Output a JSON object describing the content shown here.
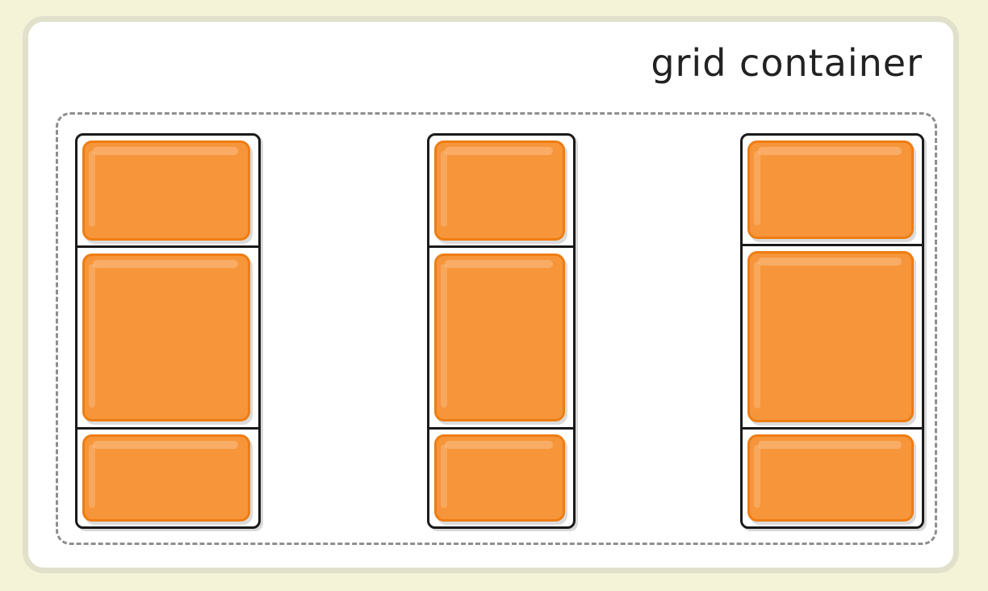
{
  "caption": "grid container",
  "colors": {
    "background": "#f4f3d8",
    "panel": "#ffffff",
    "panel_border": "#e1e0cb",
    "item_fill": "#f7953a",
    "item_border": "#ee7d12",
    "track_border": "#1a1a1a",
    "grid_outline": "#8e8e8e"
  },
  "columns": [
    {
      "rows": 3
    },
    {
      "rows": 3
    },
    {
      "rows": 3
    }
  ]
}
